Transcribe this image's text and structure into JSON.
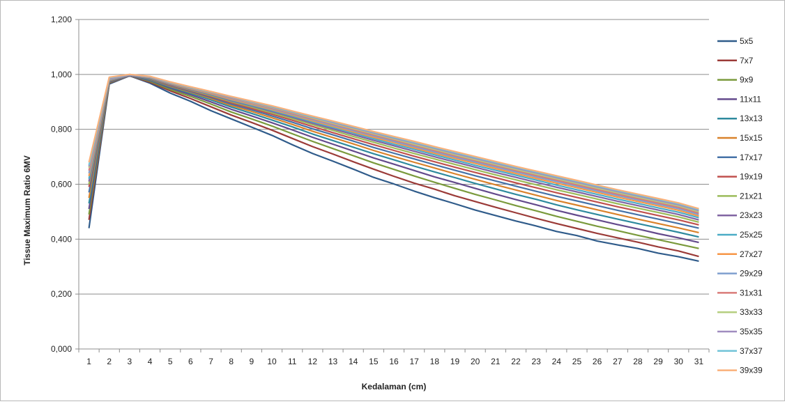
{
  "chart_data": {
    "type": "line",
    "title": "",
    "xlabel": "Kedalaman (cm)",
    "ylabel": "Tissue Maximum Ratio 6MV",
    "ylim": [
      0,
      1.2
    ],
    "yticks": [
      0,
      0.2,
      0.4,
      0.6,
      0.8,
      1.0,
      1.2
    ],
    "ytick_labels": [
      "0,000",
      "0,200",
      "0,400",
      "0,600",
      "0,800",
      "1,000",
      "1,200"
    ],
    "x": [
      1,
      2,
      3,
      4,
      5,
      6,
      7,
      8,
      9,
      10,
      11,
      12,
      13,
      14,
      15,
      16,
      17,
      18,
      19,
      20,
      21,
      22,
      23,
      24,
      25,
      26,
      27,
      28,
      29,
      30,
      31
    ],
    "grid": "horizontal",
    "legend_position": "right",
    "series": [
      {
        "name": "5x5",
        "color": "#2f5b8a",
        "values": [
          0.44,
          0.965,
          0.995,
          0.968,
          0.932,
          0.902,
          0.868,
          0.838,
          0.808,
          0.778,
          0.744,
          0.712,
          0.684,
          0.655,
          0.625,
          0.601,
          0.575,
          0.551,
          0.529,
          0.506,
          0.486,
          0.466,
          0.448,
          0.428,
          0.413,
          0.393,
          0.379,
          0.366,
          0.349,
          0.336,
          0.32
        ]
      },
      {
        "name": "7x7",
        "color": "#9b3b38",
        "values": [
          0.47,
          0.968,
          0.995,
          0.972,
          0.94,
          0.912,
          0.882,
          0.852,
          0.825,
          0.797,
          0.767,
          0.737,
          0.71,
          0.682,
          0.655,
          0.629,
          0.604,
          0.582,
          0.558,
          0.537,
          0.516,
          0.496,
          0.476,
          0.457,
          0.439,
          0.421,
          0.405,
          0.389,
          0.372,
          0.357,
          0.337
        ]
      },
      {
        "name": "9x9",
        "color": "#7a9a3c",
        "values": [
          0.49,
          0.97,
          0.995,
          0.975,
          0.945,
          0.92,
          0.892,
          0.863,
          0.838,
          0.812,
          0.784,
          0.756,
          0.73,
          0.704,
          0.678,
          0.654,
          0.63,
          0.607,
          0.585,
          0.563,
          0.543,
          0.522,
          0.503,
          0.483,
          0.465,
          0.447,
          0.431,
          0.414,
          0.398,
          0.382,
          0.366
        ]
      },
      {
        "name": "11x11",
        "color": "#634a8c",
        "values": [
          0.51,
          0.972,
          0.995,
          0.978,
          0.95,
          0.926,
          0.9,
          0.873,
          0.849,
          0.824,
          0.798,
          0.771,
          0.746,
          0.721,
          0.696,
          0.673,
          0.65,
          0.627,
          0.606,
          0.585,
          0.564,
          0.544,
          0.525,
          0.505,
          0.487,
          0.47,
          0.453,
          0.437,
          0.42,
          0.405,
          0.388
        ]
      },
      {
        "name": "13x13",
        "color": "#2e8a9e",
        "values": [
          0.53,
          0.974,
          0.996,
          0.98,
          0.954,
          0.931,
          0.907,
          0.881,
          0.858,
          0.834,
          0.809,
          0.783,
          0.759,
          0.735,
          0.711,
          0.689,
          0.666,
          0.645,
          0.624,
          0.603,
          0.583,
          0.563,
          0.545,
          0.525,
          0.507,
          0.49,
          0.473,
          0.457,
          0.441,
          0.425,
          0.408
        ]
      },
      {
        "name": "15x15",
        "color": "#d9822b",
        "values": [
          0.55,
          0.975,
          0.996,
          0.982,
          0.957,
          0.935,
          0.912,
          0.887,
          0.865,
          0.842,
          0.818,
          0.793,
          0.77,
          0.747,
          0.723,
          0.701,
          0.68,
          0.659,
          0.638,
          0.618,
          0.598,
          0.579,
          0.56,
          0.541,
          0.524,
          0.507,
          0.49,
          0.473,
          0.457,
          0.441,
          0.424
        ]
      },
      {
        "name": "17x17",
        "color": "#4572a7",
        "values": [
          0.57,
          0.976,
          0.996,
          0.983,
          0.959,
          0.938,
          0.916,
          0.892,
          0.871,
          0.849,
          0.826,
          0.802,
          0.78,
          0.757,
          0.734,
          0.713,
          0.692,
          0.671,
          0.651,
          0.631,
          0.612,
          0.593,
          0.574,
          0.556,
          0.539,
          0.522,
          0.505,
          0.489,
          0.473,
          0.457,
          0.44
        ]
      },
      {
        "name": "19x19",
        "color": "#c0504d",
        "values": [
          0.59,
          0.977,
          0.997,
          0.985,
          0.961,
          0.941,
          0.92,
          0.897,
          0.876,
          0.855,
          0.833,
          0.81,
          0.788,
          0.766,
          0.744,
          0.723,
          0.702,
          0.682,
          0.662,
          0.643,
          0.624,
          0.605,
          0.587,
          0.569,
          0.552,
          0.535,
          0.518,
          0.502,
          0.486,
          0.47,
          0.452
        ]
      },
      {
        "name": "21x21",
        "color": "#9bbb59",
        "values": [
          0.6,
          0.978,
          0.997,
          0.986,
          0.963,
          0.943,
          0.923,
          0.901,
          0.881,
          0.86,
          0.839,
          0.817,
          0.796,
          0.774,
          0.753,
          0.732,
          0.712,
          0.692,
          0.672,
          0.653,
          0.634,
          0.616,
          0.598,
          0.58,
          0.563,
          0.546,
          0.529,
          0.513,
          0.497,
          0.481,
          0.462
        ]
      },
      {
        "name": "23x23",
        "color": "#8064a2",
        "values": [
          0.61,
          0.979,
          0.997,
          0.987,
          0.964,
          0.945,
          0.926,
          0.904,
          0.885,
          0.865,
          0.844,
          0.822,
          0.802,
          0.781,
          0.76,
          0.74,
          0.72,
          0.7,
          0.681,
          0.662,
          0.643,
          0.625,
          0.607,
          0.589,
          0.572,
          0.555,
          0.538,
          0.522,
          0.506,
          0.49,
          0.47
        ]
      },
      {
        "name": "25x25",
        "color": "#4bacc6",
        "values": [
          0.62,
          0.98,
          0.998,
          0.988,
          0.966,
          0.947,
          0.928,
          0.907,
          0.888,
          0.869,
          0.848,
          0.827,
          0.807,
          0.787,
          0.766,
          0.746,
          0.727,
          0.707,
          0.688,
          0.669,
          0.651,
          0.633,
          0.615,
          0.597,
          0.58,
          0.563,
          0.546,
          0.53,
          0.514,
          0.498,
          0.478
        ]
      },
      {
        "name": "27x27",
        "color": "#f79646",
        "values": [
          0.63,
          0.981,
          0.998,
          0.989,
          0.967,
          0.948,
          0.93,
          0.909,
          0.891,
          0.872,
          0.852,
          0.831,
          0.811,
          0.791,
          0.771,
          0.752,
          0.732,
          0.713,
          0.694,
          0.676,
          0.657,
          0.639,
          0.621,
          0.604,
          0.587,
          0.57,
          0.553,
          0.537,
          0.521,
          0.505,
          0.484
        ]
      },
      {
        "name": "29x29",
        "color": "#7f9fcf",
        "values": [
          0.64,
          0.982,
          0.998,
          0.99,
          0.968,
          0.95,
          0.932,
          0.912,
          0.894,
          0.875,
          0.855,
          0.835,
          0.815,
          0.795,
          0.776,
          0.756,
          0.737,
          0.718,
          0.699,
          0.681,
          0.663,
          0.645,
          0.627,
          0.61,
          0.593,
          0.576,
          0.559,
          0.543,
          0.527,
          0.511,
          0.49
        ]
      },
      {
        "name": "31x31",
        "color": "#d97b79",
        "values": [
          0.65,
          0.984,
          0.999,
          0.99,
          0.969,
          0.951,
          0.933,
          0.914,
          0.896,
          0.878,
          0.858,
          0.838,
          0.819,
          0.799,
          0.78,
          0.761,
          0.742,
          0.723,
          0.704,
          0.686,
          0.668,
          0.65,
          0.632,
          0.615,
          0.598,
          0.581,
          0.564,
          0.548,
          0.532,
          0.516,
          0.495
        ]
      },
      {
        "name": "33x33",
        "color": "#b5cf7f",
        "values": [
          0.66,
          0.985,
          0.999,
          0.991,
          0.97,
          0.952,
          0.935,
          0.916,
          0.898,
          0.88,
          0.861,
          0.841,
          0.822,
          0.803,
          0.784,
          0.765,
          0.746,
          0.727,
          0.708,
          0.69,
          0.672,
          0.654,
          0.637,
          0.62,
          0.603,
          0.586,
          0.569,
          0.553,
          0.537,
          0.521,
          0.5
        ]
      },
      {
        "name": "35x35",
        "color": "#a08cbf",
        "values": [
          0.665,
          0.986,
          0.999,
          0.991,
          0.971,
          0.953,
          0.936,
          0.917,
          0.9,
          0.882,
          0.863,
          0.844,
          0.825,
          0.806,
          0.787,
          0.768,
          0.75,
          0.731,
          0.712,
          0.694,
          0.676,
          0.658,
          0.641,
          0.624,
          0.607,
          0.59,
          0.573,
          0.557,
          0.541,
          0.525,
          0.504
        ]
      },
      {
        "name": "37x37",
        "color": "#72c3d8",
        "values": [
          0.67,
          0.988,
          1.0,
          0.992,
          0.972,
          0.954,
          0.937,
          0.919,
          0.902,
          0.884,
          0.865,
          0.846,
          0.828,
          0.809,
          0.79,
          0.771,
          0.753,
          0.734,
          0.716,
          0.698,
          0.68,
          0.662,
          0.645,
          0.628,
          0.611,
          0.594,
          0.577,
          0.561,
          0.545,
          0.529,
          0.508
        ]
      },
      {
        "name": "39x39",
        "color": "#fab07a",
        "values": [
          0.68,
          0.99,
          1.0,
          0.993,
          0.973,
          0.955,
          0.938,
          0.92,
          0.903,
          0.886,
          0.867,
          0.848,
          0.83,
          0.811,
          0.792,
          0.774,
          0.756,
          0.737,
          0.719,
          0.701,
          0.683,
          0.665,
          0.648,
          0.631,
          0.614,
          0.597,
          0.58,
          0.564,
          0.548,
          0.532,
          0.511
        ]
      }
    ]
  }
}
